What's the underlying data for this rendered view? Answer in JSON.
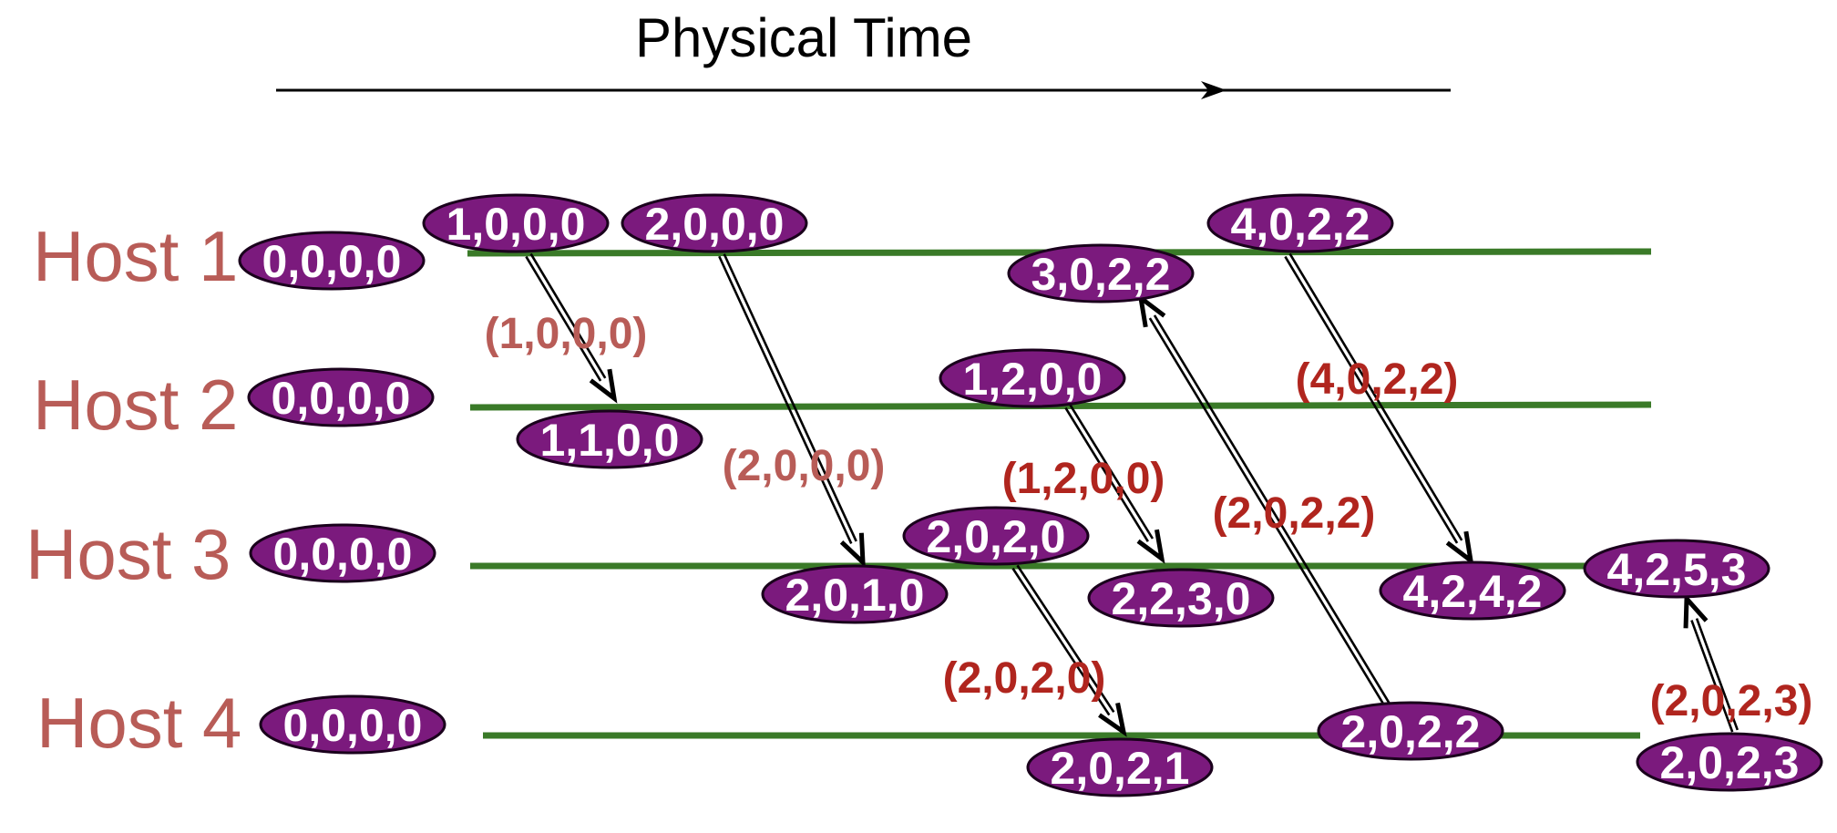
{
  "title": "Physical Time",
  "colors": {
    "timeline": "#3a7a28",
    "host_label": "#b85c57",
    "node_fill": "#7b1a7d",
    "node_text": "#ffffff",
    "msg_label_light": "#b85c57",
    "msg_label_dark": "#b0251e",
    "arrow": "#000000"
  },
  "hosts": [
    {
      "id": "h1",
      "label": "Host 1"
    },
    {
      "id": "h2",
      "label": "Host 2"
    },
    {
      "id": "h3",
      "label": "Host 3"
    },
    {
      "id": "h4",
      "label": "Host 4"
    }
  ],
  "events": [
    {
      "id": "h1_init",
      "host": "h1",
      "clock": "0,0,0,0"
    },
    {
      "id": "h1_e1",
      "host": "h1",
      "clock": "1,0,0,0"
    },
    {
      "id": "h1_e2",
      "host": "h1",
      "clock": "2,0,0,0"
    },
    {
      "id": "h1_e3",
      "host": "h1",
      "clock": "3,0,2,2"
    },
    {
      "id": "h1_e4",
      "host": "h1",
      "clock": "4,0,2,2"
    },
    {
      "id": "h2_init",
      "host": "h2",
      "clock": "0,0,0,0"
    },
    {
      "id": "h2_e1",
      "host": "h2",
      "clock": "1,1,0,0"
    },
    {
      "id": "h2_e2",
      "host": "h2",
      "clock": "1,2,0,0"
    },
    {
      "id": "h3_init",
      "host": "h3",
      "clock": "0,0,0,0"
    },
    {
      "id": "h3_e1",
      "host": "h3",
      "clock": "2,0,1,0"
    },
    {
      "id": "h3_e2",
      "host": "h3",
      "clock": "2,0,2,0"
    },
    {
      "id": "h3_e3",
      "host": "h3",
      "clock": "2,2,3,0"
    },
    {
      "id": "h3_e4",
      "host": "h3",
      "clock": "4,2,4,2"
    },
    {
      "id": "h3_e5",
      "host": "h3",
      "clock": "4,2,5,3"
    },
    {
      "id": "h4_init",
      "host": "h4",
      "clock": "0,0,0,0"
    },
    {
      "id": "h4_e1",
      "host": "h4",
      "clock": "2,0,2,1"
    },
    {
      "id": "h4_e2",
      "host": "h4",
      "clock": "2,0,2,2"
    },
    {
      "id": "h4_e3",
      "host": "h4",
      "clock": "2,0,2,3"
    }
  ],
  "messages": [
    {
      "from": "h1_e1",
      "to": "h2_e1",
      "label": "(1,0,0,0)",
      "shade": "light"
    },
    {
      "from": "h1_e2",
      "to": "h3_e1",
      "label": "(2,0,0,0)",
      "shade": "light"
    },
    {
      "from": "h2_e2",
      "to": "h3_e3",
      "label": "(1,2,0,0)",
      "shade": "dark"
    },
    {
      "from": "h3_e2",
      "to": "h4_e1",
      "label": "(2,0,2,0)",
      "shade": "dark"
    },
    {
      "from": "h4_e2",
      "to": "h1_e3",
      "label": "(2,0,2,2)",
      "shade": "dark"
    },
    {
      "from": "h1_e4",
      "to": "h3_e4",
      "label": "(4,0,2,2)",
      "shade": "dark"
    },
    {
      "from": "h4_e3",
      "to": "h3_e5",
      "label": "(2,0,2,3)",
      "shade": "dark"
    }
  ]
}
